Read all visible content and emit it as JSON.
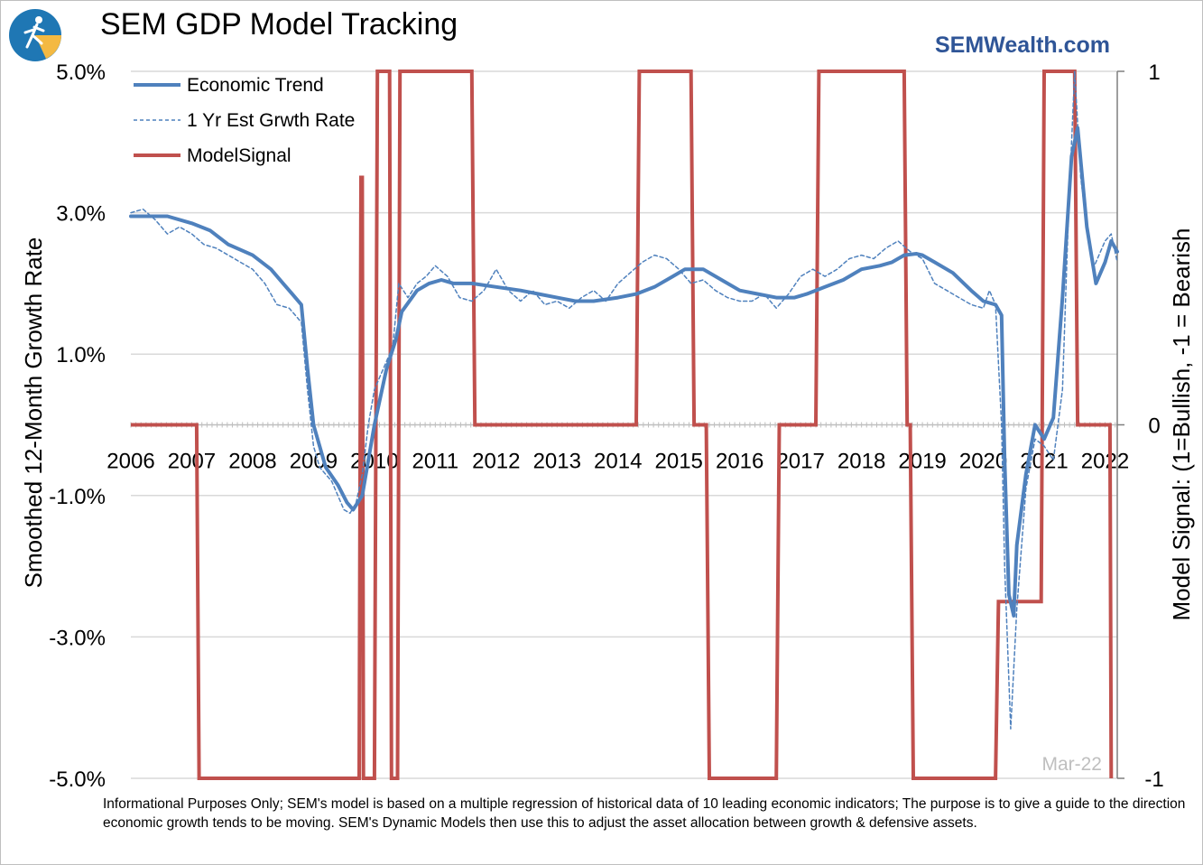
{
  "header": {
    "title": "SEM GDP Model Tracking",
    "brand": "SEMWealth.com",
    "logo_icon": "runner-logo-icon"
  },
  "footnote": "Informational Purposes Only; SEM's model is based on a multiple regression of historical data of 10 leading economic indicators; The purpose is to give a guide to the direction economic growth tends to be moving. SEM's Dynamic Models then use this to adjust the asset allocation between growth & defensive assets.",
  "chart_data": {
    "type": "line",
    "title": "SEM GDP Model Tracking",
    "ylabel": "Smoothed 12-Month Growth Rate",
    "y2label": "Model Signal: (1=Bullish, -1 = Bearish",
    "ylim": [
      -5.0,
      5.0
    ],
    "y2lim": [
      -1,
      1
    ],
    "xlim": [
      2006,
      2022.2
    ],
    "y_ticks": [
      5.0,
      3.0,
      1.0,
      -1.0,
      -3.0,
      -5.0
    ],
    "y_tick_labels": [
      "5.0%",
      "3.0%",
      "1.0%",
      "-1.0%",
      "-3.0%",
      "-5.0%"
    ],
    "y2_ticks": [
      1,
      0,
      -1
    ],
    "y2_tick_labels": [
      "1",
      "0",
      "-1"
    ],
    "x_ticks": [
      2006,
      2007,
      2008,
      2009,
      2010,
      2011,
      2012,
      2013,
      2014,
      2015,
      2016,
      2017,
      2018,
      2019,
      2020,
      2021,
      2022
    ],
    "x_tick_labels": [
      "2006",
      "2007",
      "2008",
      "2009",
      "2010",
      "2011",
      "2012",
      "2013",
      "2014",
      "2015",
      "2016",
      "2017",
      "2018",
      "2019",
      "2020",
      "2021",
      "2022"
    ],
    "annotation": "Mar-22",
    "grid": true,
    "legend_position": "top-left",
    "series": [
      {
        "name": "Economic Trend",
        "axis": "left",
        "color": "#4f81bd",
        "style": "solid",
        "x": [
          2006.0,
          2006.3,
          2006.6,
          2007.0,
          2007.3,
          2007.6,
          2008.0,
          2008.3,
          2008.5,
          2008.65,
          2008.8,
          2008.9,
          2009.0,
          2009.2,
          2009.4,
          2009.55,
          2009.65,
          2009.8,
          2010.0,
          2010.2,
          2010.35,
          2010.45,
          2010.7,
          2010.9,
          2011.1,
          2011.3,
          2011.6,
          2012.0,
          2012.4,
          2012.7,
          2013.0,
          2013.3,
          2013.6,
          2014.0,
          2014.3,
          2014.6,
          2014.9,
          2015.1,
          2015.4,
          2015.7,
          2016.0,
          2016.3,
          2016.6,
          2016.9,
          2017.1,
          2017.4,
          2017.7,
          2018.0,
          2018.3,
          2018.5,
          2018.7,
          2018.9,
          2019.0,
          2019.2,
          2019.5,
          2019.8,
          2020.0,
          2020.2,
          2020.3,
          2020.35,
          2020.42,
          2020.5,
          2020.55,
          2020.7,
          2020.85,
          2021.0,
          2021.15,
          2021.3,
          2021.45,
          2021.55,
          2021.7,
          2021.85,
          2022.0,
          2022.1,
          2022.2
        ],
        "y": [
          2.95,
          2.95,
          2.95,
          2.85,
          2.75,
          2.55,
          2.4,
          2.2,
          2.0,
          1.85,
          1.7,
          0.8,
          0.0,
          -0.6,
          -0.85,
          -1.1,
          -1.2,
          -1.0,
          0.0,
          0.8,
          1.2,
          1.6,
          1.9,
          2.0,
          2.05,
          2.0,
          2.0,
          1.95,
          1.9,
          1.85,
          1.8,
          1.75,
          1.75,
          1.8,
          1.85,
          1.95,
          2.1,
          2.2,
          2.2,
          2.05,
          1.9,
          1.85,
          1.8,
          1.8,
          1.85,
          1.95,
          2.05,
          2.2,
          2.25,
          2.3,
          2.4,
          2.42,
          2.4,
          2.3,
          2.15,
          1.9,
          1.75,
          1.7,
          1.55,
          -0.5,
          -2.4,
          -2.7,
          -1.7,
          -0.7,
          0.0,
          -0.2,
          0.1,
          1.8,
          3.8,
          4.2,
          2.8,
          2.0,
          2.3,
          2.6,
          2.45
        ]
      },
      {
        "name": "1 Yr Est Grwth Rate",
        "axis": "left",
        "color": "#4f81bd",
        "style": "dashed",
        "x": [
          2006.0,
          2006.2,
          2006.4,
          2006.6,
          2006.8,
          2007.0,
          2007.2,
          2007.4,
          2007.6,
          2007.8,
          2008.0,
          2008.2,
          2008.4,
          2008.6,
          2008.7,
          2008.8,
          2008.9,
          2009.0,
          2009.1,
          2009.3,
          2009.5,
          2009.6,
          2009.7,
          2009.8,
          2009.9,
          2010.0,
          2010.1,
          2010.3,
          2010.4,
          2010.55,
          2010.7,
          2010.85,
          2011.0,
          2011.2,
          2011.4,
          2011.6,
          2011.8,
          2012.0,
          2012.2,
          2012.4,
          2012.6,
          2012.8,
          2013.0,
          2013.2,
          2013.4,
          2013.6,
          2013.8,
          2014.0,
          2014.2,
          2014.4,
          2014.6,
          2014.8,
          2015.0,
          2015.2,
          2015.4,
          2015.6,
          2015.8,
          2016.0,
          2016.2,
          2016.4,
          2016.6,
          2016.8,
          2017.0,
          2017.2,
          2017.4,
          2017.6,
          2017.8,
          2018.0,
          2018.2,
          2018.4,
          2018.6,
          2018.8,
          2019.0,
          2019.2,
          2019.4,
          2019.6,
          2019.8,
          2020.0,
          2020.1,
          2020.2,
          2020.3,
          2020.35,
          2020.45,
          2020.55,
          2020.7,
          2020.85,
          2021.0,
          2021.15,
          2021.3,
          2021.4,
          2021.5,
          2021.6,
          2021.7,
          2021.8,
          2022.0,
          2022.1,
          2022.2
        ],
        "y": [
          3.0,
          3.05,
          2.9,
          2.7,
          2.8,
          2.7,
          2.55,
          2.5,
          2.4,
          2.3,
          2.2,
          2.0,
          1.7,
          1.65,
          1.55,
          1.45,
          0.5,
          -0.3,
          -0.6,
          -0.8,
          -1.2,
          -1.25,
          -1.1,
          -0.7,
          0.0,
          0.5,
          0.7,
          1.1,
          2.0,
          1.8,
          2.0,
          2.1,
          2.25,
          2.1,
          1.8,
          1.75,
          1.9,
          2.2,
          1.9,
          1.75,
          1.9,
          1.7,
          1.75,
          1.65,
          1.8,
          1.9,
          1.75,
          2.0,
          2.15,
          2.3,
          2.4,
          2.35,
          2.2,
          2.0,
          2.05,
          1.9,
          1.8,
          1.75,
          1.75,
          1.85,
          1.65,
          1.85,
          2.1,
          2.2,
          2.1,
          2.2,
          2.35,
          2.4,
          2.35,
          2.5,
          2.6,
          2.45,
          2.35,
          2.0,
          1.9,
          1.8,
          1.7,
          1.65,
          1.9,
          1.7,
          0.0,
          -2.0,
          -4.3,
          -2.6,
          -0.9,
          -0.2,
          -0.3,
          -0.5,
          0.5,
          3.0,
          5.0,
          3.5,
          2.8,
          2.2,
          2.6,
          2.7,
          2.3
        ]
      },
      {
        "name": "ModelSignal",
        "axis": "right",
        "color": "#c0504d",
        "style": "solid",
        "x": [
          2006.0,
          2007.08,
          2007.12,
          2009.75,
          2009.78,
          2009.8,
          2009.82,
          2010.0,
          2010.05,
          2010.25,
          2010.28,
          2010.38,
          2010.42,
          2010.45,
          2011.6,
          2011.65,
          2014.3,
          2014.35,
          2015.2,
          2015.25,
          2015.45,
          2015.5,
          2016.6,
          2016.65,
          2017.25,
          2017.3,
          2018.7,
          2018.75,
          2018.8,
          2018.85,
          2020.2,
          2020.25,
          2020.55,
          2020.6,
          2020.95,
          2021.0,
          2021.1,
          2021.15,
          2021.5,
          2021.55,
          2021.9,
          2021.95,
          2022.08,
          2022.1
        ],
        "y": [
          0,
          0,
          -1,
          -1,
          0.7,
          0.7,
          -1,
          -1,
          1,
          1,
          -1,
          -1,
          1,
          1,
          1,
          0,
          0,
          1,
          1,
          0,
          0,
          -1,
          -1,
          0,
          0,
          1,
          1,
          0,
          0,
          -1,
          -1,
          -0.5,
          -0.5,
          -0.5,
          -0.5,
          1,
          1,
          1,
          1,
          0,
          0,
          0,
          0,
          -1
        ]
      }
    ]
  }
}
